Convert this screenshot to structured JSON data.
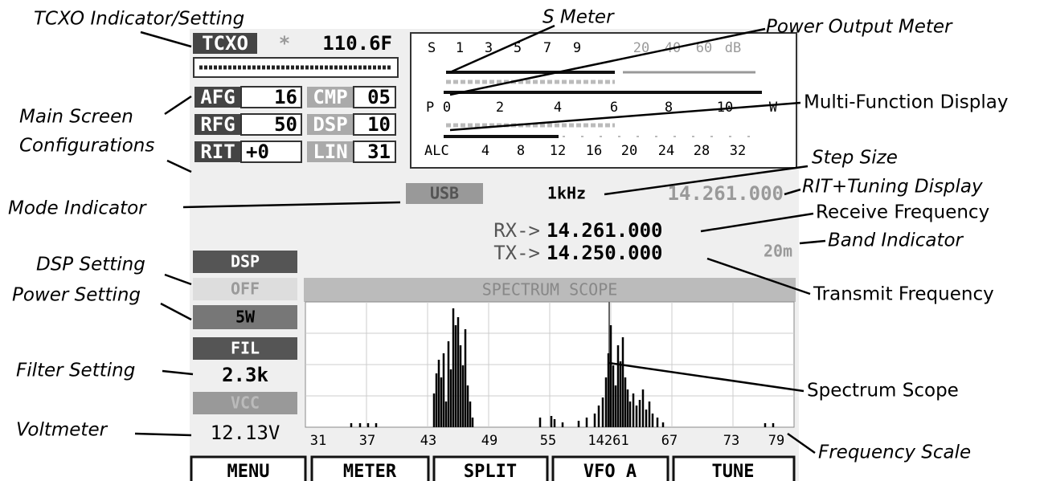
{
  "annotations": {
    "tcxo": "TCXO Indicator/Setting",
    "s_meter": "S Meter",
    "power_meter": "Power Output Meter",
    "multi_function": "Multi-Function Display",
    "main_config": [
      "Main Screen",
      "Configurations"
    ],
    "step_size": "Step Size",
    "rit_tuning": "RIT+Tuning Display",
    "mode": "Mode Indicator",
    "receive": "Receive Frequency",
    "band": "Band Indicator",
    "dsp": "DSP Setting",
    "power": "Power Setting",
    "transmit": "Transmit Frequency",
    "filter": "Filter Setting",
    "spectrum": "Spectrum Scope",
    "voltmeter": "Voltmeter",
    "frequency_scale": "Frequency Scale"
  },
  "screen": {
    "tcxo": {
      "label": "TCXO",
      "marker": "*",
      "value": "110.6F"
    },
    "config": [
      {
        "label": "AFG",
        "value": "16"
      },
      {
        "label": "CMP",
        "value": "05"
      },
      {
        "label": "RFG",
        "value": "50"
      },
      {
        "label": "DSP",
        "value": "10"
      },
      {
        "label": "RIT",
        "value": "+0"
      },
      {
        "label": "LIN",
        "value": "31"
      }
    ],
    "meter": {
      "s": [
        "S",
        "1",
        "3",
        "5",
        "7",
        "9",
        "20",
        "40",
        "60",
        "dB"
      ],
      "p": [
        "P",
        "0",
        "2",
        "4",
        "6",
        "8",
        "10",
        "W"
      ],
      "alc": [
        "ALC",
        "4",
        "8",
        "12",
        "16",
        "20",
        "24",
        "28",
        "32"
      ]
    },
    "mode": "USB",
    "step": "1kHz",
    "rit_frequency": "14.261.000",
    "rx_label": "RX->",
    "rx_frequency": "14.261.000",
    "tx_label": "TX->",
    "tx_frequency": "14.250.000",
    "band": "20m",
    "left": {
      "dsp_label": "DSP",
      "dsp_value": "OFF",
      "power": "5W",
      "filter_label": "FIL",
      "filter_value": "2.3k",
      "vcc_label": "VCC",
      "voltage": "12.13V"
    },
    "scope": {
      "title": "SPECTRUM SCOPE",
      "scale": [
        "31",
        "37",
        "43",
        "49",
        "55",
        "14261",
        "67",
        "73",
        "79"
      ]
    },
    "buttons": [
      "MENU",
      "METER",
      "SPLIT",
      "VFO A",
      "TUNE"
    ]
  }
}
